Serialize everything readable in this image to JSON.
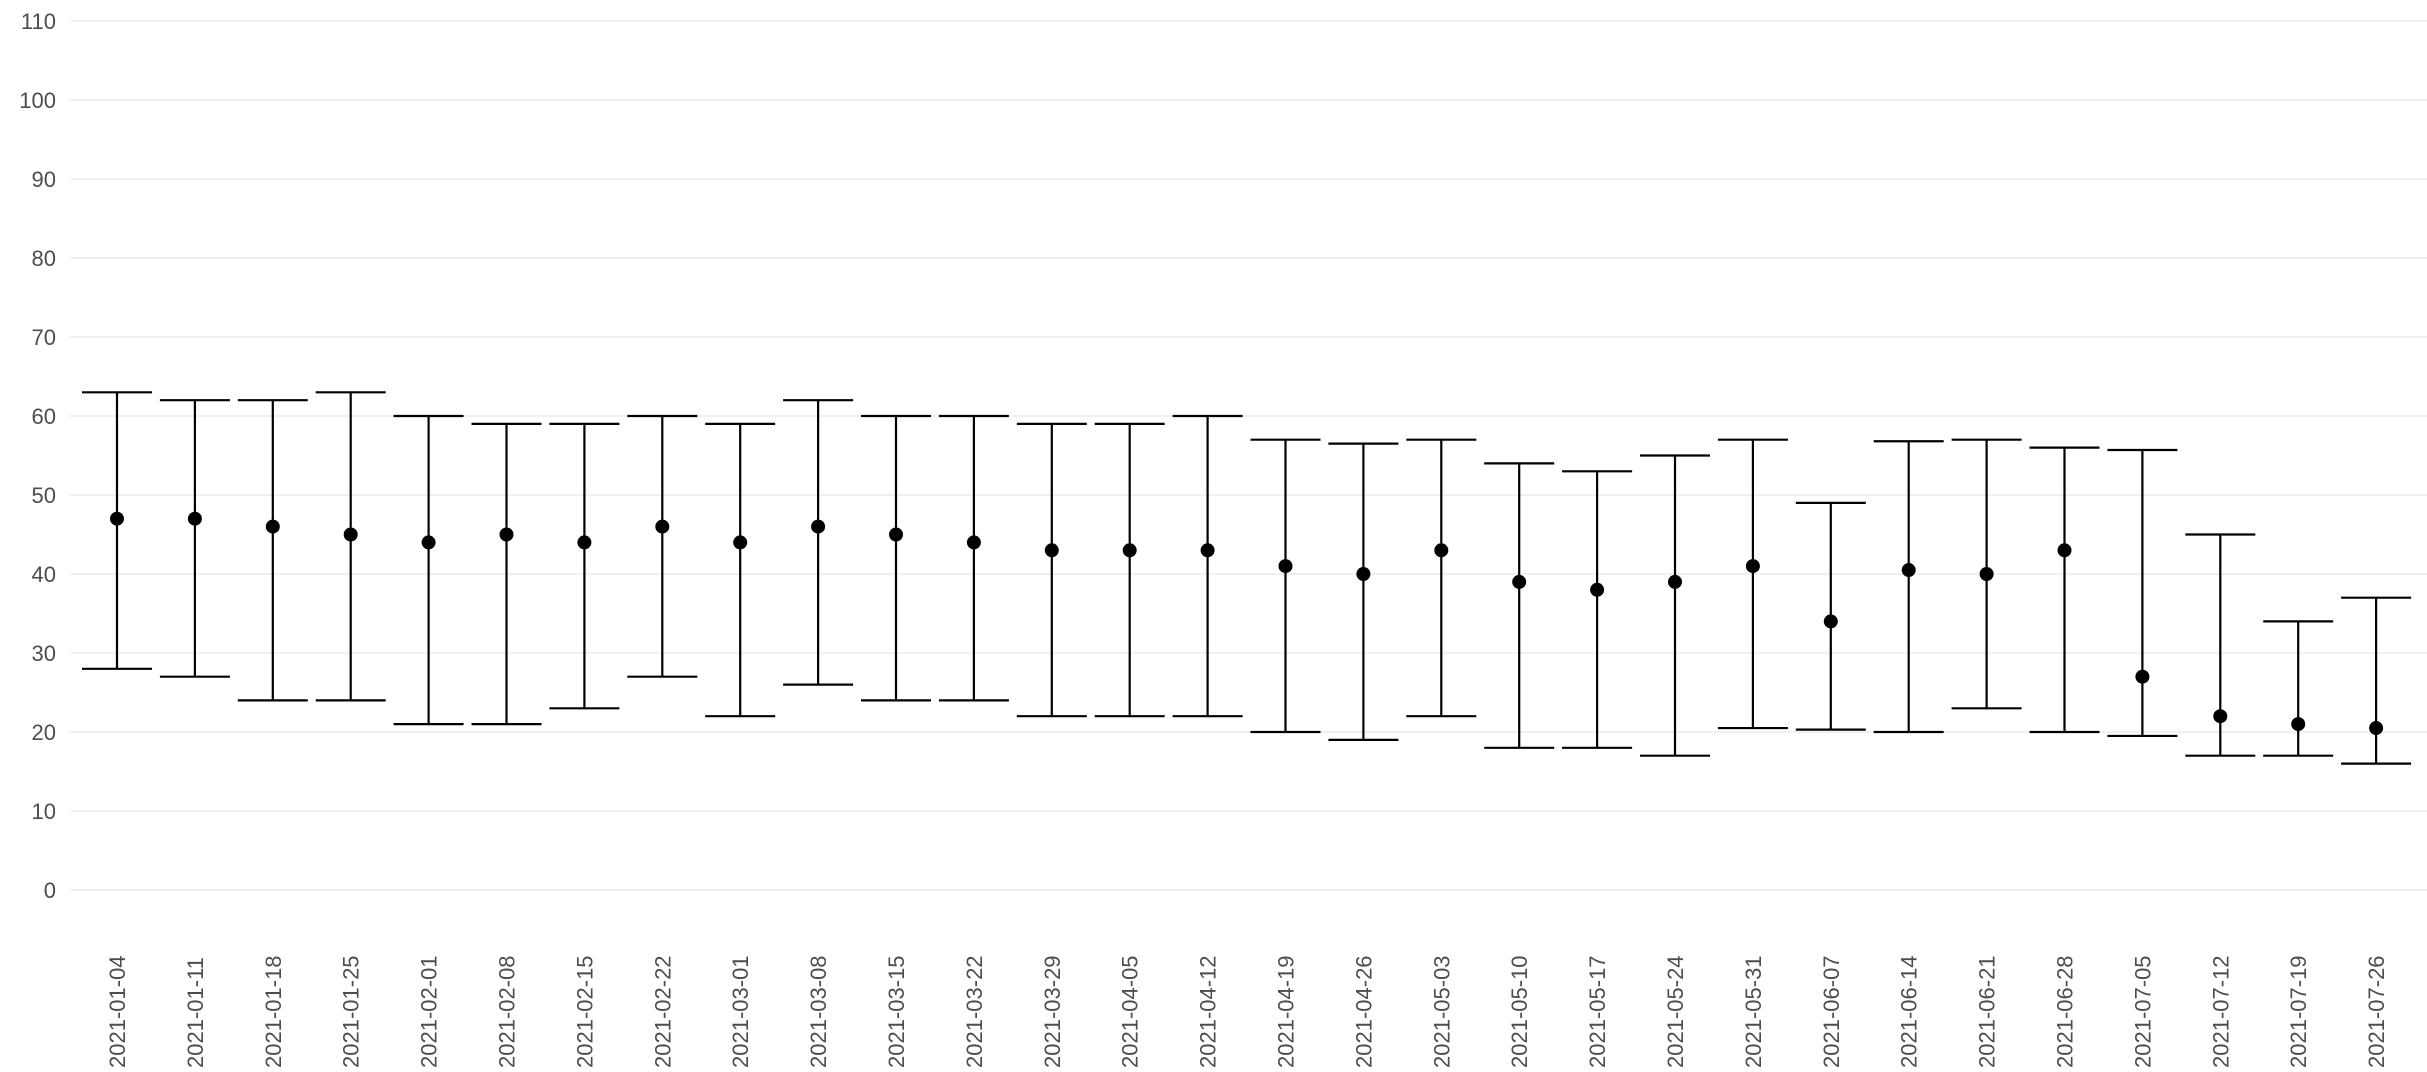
{
  "chart_data": {
    "type": "errorbar",
    "title": "",
    "xlabel": "",
    "ylabel": "",
    "ylim": [
      -5,
      112
    ],
    "yticks": [
      0,
      10,
      20,
      30,
      40,
      50,
      60,
      70,
      80,
      90,
      100,
      110
    ],
    "grid": true,
    "legend": "none",
    "x_label_rotation": -90,
    "colors": {
      "marks": "#000000",
      "grid": "#ebebeb",
      "tick_text": "#4d4d4d",
      "background": "#ffffff"
    },
    "points": [
      {
        "x": "2021-01-04",
        "y": 47,
        "lower": 28,
        "upper": 63
      },
      {
        "x": "2021-01-11",
        "y": 47,
        "lower": 27,
        "upper": 62
      },
      {
        "x": "2021-01-18",
        "y": 46,
        "lower": 24,
        "upper": 62
      },
      {
        "x": "2021-01-25",
        "y": 45,
        "lower": 24,
        "upper": 63
      },
      {
        "x": "2021-02-01",
        "y": 44,
        "lower": 21,
        "upper": 60
      },
      {
        "x": "2021-02-08",
        "y": 45,
        "lower": 21,
        "upper": 59
      },
      {
        "x": "2021-02-15",
        "y": 44,
        "lower": 23,
        "upper": 59
      },
      {
        "x": "2021-02-22",
        "y": 46,
        "lower": 27,
        "upper": 60
      },
      {
        "x": "2021-03-01",
        "y": 44,
        "lower": 22,
        "upper": 59
      },
      {
        "x": "2021-03-08",
        "y": 46,
        "lower": 26,
        "upper": 62
      },
      {
        "x": "2021-03-15",
        "y": 45,
        "lower": 24,
        "upper": 60
      },
      {
        "x": "2021-03-22",
        "y": 44,
        "lower": 24,
        "upper": 60
      },
      {
        "x": "2021-03-29",
        "y": 43,
        "lower": 22,
        "upper": 59
      },
      {
        "x": "2021-04-05",
        "y": 43,
        "lower": 22,
        "upper": 59
      },
      {
        "x": "2021-04-12",
        "y": 43,
        "lower": 22,
        "upper": 60
      },
      {
        "x": "2021-04-19",
        "y": 41,
        "lower": 20,
        "upper": 57
      },
      {
        "x": "2021-04-26",
        "y": 40,
        "lower": 19,
        "upper": 56.5
      },
      {
        "x": "2021-05-03",
        "y": 43,
        "lower": 22,
        "upper": 57
      },
      {
        "x": "2021-05-10",
        "y": 39,
        "lower": 18,
        "upper": 54
      },
      {
        "x": "2021-05-17",
        "y": 38,
        "lower": 18,
        "upper": 53
      },
      {
        "x": "2021-05-24",
        "y": 39,
        "lower": 17,
        "upper": 55
      },
      {
        "x": "2021-05-31",
        "y": 41,
        "lower": 20.5,
        "upper": 57
      },
      {
        "x": "2021-06-07",
        "y": 34,
        "lower": 20.3,
        "upper": 49
      },
      {
        "x": "2021-06-14",
        "y": 40.5,
        "lower": 20,
        "upper": 56.8
      },
      {
        "x": "2021-06-21",
        "y": 40,
        "lower": 23,
        "upper": 57
      },
      {
        "x": "2021-06-28",
        "y": 43,
        "lower": 20,
        "upper": 56
      },
      {
        "x": "2021-07-05",
        "y": 27,
        "lower": 19.5,
        "upper": 55.7
      },
      {
        "x": "2021-07-12",
        "y": 22,
        "lower": 17,
        "upper": 45
      },
      {
        "x": "2021-07-19",
        "y": 21,
        "lower": 17,
        "upper": 34
      },
      {
        "x": "2021-07-26",
        "y": 20.5,
        "lower": 16,
        "upper": 37
      }
    ]
  }
}
